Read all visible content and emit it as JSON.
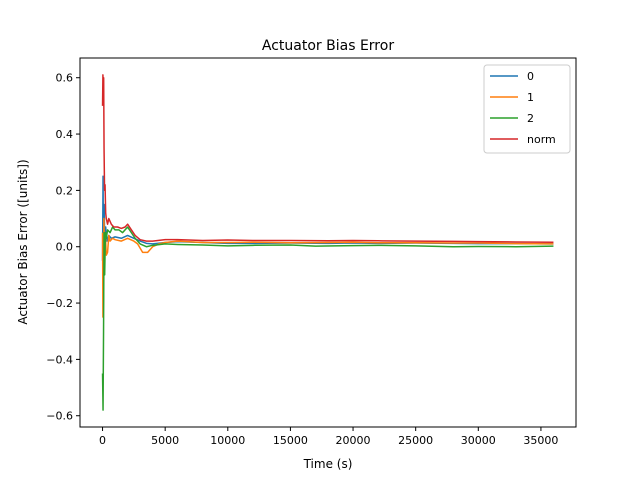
{
  "chart_data": {
    "type": "line",
    "title": "Actuator Bias Error",
    "xlabel": "Time (s)",
    "ylabel": "Actuator Bias Error ([units])",
    "xlim": [
      -1800,
      37800
    ],
    "ylim": [
      -0.64,
      0.67
    ],
    "xticks": [
      0,
      5000,
      10000,
      15000,
      20000,
      25000,
      30000,
      35000
    ],
    "xtick_labels": [
      "0",
      "5000",
      "10000",
      "15000",
      "20000",
      "25000",
      "30000",
      "35000"
    ],
    "yticks": [
      -0.6,
      -0.4,
      -0.2,
      0.0,
      0.2,
      0.4,
      0.6
    ],
    "ytick_labels": [
      "−0.6",
      "−0.4",
      "−0.2",
      "0.0",
      "0.2",
      "0.4",
      "0.6"
    ],
    "grid": false,
    "legend_position": "top-right",
    "series": [
      {
        "name": "0",
        "color": "#1f77b4",
        "points": [
          [
            0,
            -0.05
          ],
          [
            40,
            0.25
          ],
          [
            80,
            -0.1
          ],
          [
            130,
            0.15
          ],
          [
            180,
            -0.02
          ],
          [
            250,
            0.07
          ],
          [
            350,
            0.02
          ],
          [
            500,
            0.04
          ],
          [
            700,
            0.03
          ],
          [
            1000,
            0.035
          ],
          [
            1500,
            0.03
          ],
          [
            2000,
            0.04
          ],
          [
            2500,
            0.03
          ],
          [
            3000,
            0.02
          ],
          [
            3500,
            0.012
          ],
          [
            4000,
            0.01
          ],
          [
            5000,
            0.015
          ],
          [
            6000,
            0.018
          ],
          [
            8000,
            0.015
          ],
          [
            10000,
            0.012
          ],
          [
            12000,
            0.012
          ],
          [
            15000,
            0.013
          ],
          [
            18000,
            0.012
          ],
          [
            20000,
            0.013
          ],
          [
            22000,
            0.012
          ],
          [
            25000,
            0.013
          ],
          [
            28000,
            0.012
          ],
          [
            30000,
            0.011
          ],
          [
            33000,
            0.011
          ],
          [
            36000,
            0.01
          ]
        ]
      },
      {
        "name": "1",
        "color": "#ff7f0e",
        "points": [
          [
            0,
            0.05
          ],
          [
            30,
            -0.25
          ],
          [
            70,
            -0.2
          ],
          [
            110,
            0.1
          ],
          [
            160,
            -0.05
          ],
          [
            220,
            0.05
          ],
          [
            300,
            -0.03
          ],
          [
            400,
            -0.02
          ],
          [
            500,
            0.04
          ],
          [
            600,
            0.02
          ],
          [
            800,
            0.03
          ],
          [
            1000,
            0.025
          ],
          [
            1500,
            0.02
          ],
          [
            2000,
            0.03
          ],
          [
            2500,
            0.02
          ],
          [
            2800,
            0.01
          ],
          [
            3200,
            -0.02
          ],
          [
            3600,
            -0.02
          ],
          [
            4000,
            0.0
          ],
          [
            4500,
            0.01
          ],
          [
            5000,
            0.015
          ],
          [
            6000,
            0.02
          ],
          [
            8000,
            0.015
          ],
          [
            10000,
            0.015
          ],
          [
            12000,
            0.016
          ],
          [
            15000,
            0.014
          ],
          [
            18000,
            0.015
          ],
          [
            20000,
            0.016
          ],
          [
            22000,
            0.014
          ],
          [
            25000,
            0.014
          ],
          [
            28000,
            0.013
          ],
          [
            30000,
            0.013
          ],
          [
            33000,
            0.011
          ],
          [
            36000,
            0.01
          ]
        ]
      },
      {
        "name": "2",
        "color": "#2ca02c",
        "points": [
          [
            0,
            -0.45
          ],
          [
            40,
            -0.58
          ],
          [
            80,
            -0.3
          ],
          [
            120,
            0.05
          ],
          [
            170,
            -0.1
          ],
          [
            230,
            0.05
          ],
          [
            300,
            0.03
          ],
          [
            400,
            0.06
          ],
          [
            600,
            0.05
          ],
          [
            800,
            0.07
          ],
          [
            1000,
            0.06
          ],
          [
            1300,
            0.06
          ],
          [
            1600,
            0.05
          ],
          [
            2000,
            0.07
          ],
          [
            2300,
            0.05
          ],
          [
            2600,
            0.03
          ],
          [
            3000,
            0.01
          ],
          [
            3500,
            0.0
          ],
          [
            4000,
            0.005
          ],
          [
            5000,
            0.01
          ],
          [
            6000,
            0.008
          ],
          [
            8000,
            0.006
          ],
          [
            10000,
            0.003
          ],
          [
            12000,
            0.005
          ],
          [
            15000,
            0.006
          ],
          [
            17000,
            0.002
          ],
          [
            20000,
            0.004
          ],
          [
            22000,
            0.005
          ],
          [
            25000,
            0.003
          ],
          [
            28000,
            0.0
          ],
          [
            30000,
            0.001
          ],
          [
            33000,
            0.0
          ],
          [
            36000,
            0.002
          ]
        ]
      },
      {
        "name": "norm",
        "color": "#d62728",
        "points": [
          [
            0,
            0.5
          ],
          [
            30,
            0.61
          ],
          [
            60,
            0.55
          ],
          [
            90,
            0.6
          ],
          [
            120,
            0.35
          ],
          [
            160,
            0.2
          ],
          [
            200,
            0.22
          ],
          [
            250,
            0.12
          ],
          [
            300,
            0.1
          ],
          [
            400,
            0.08
          ],
          [
            500,
            0.1
          ],
          [
            700,
            0.08
          ],
          [
            900,
            0.07
          ],
          [
            1200,
            0.07
          ],
          [
            1500,
            0.065
          ],
          [
            1800,
            0.07
          ],
          [
            2000,
            0.08
          ],
          [
            2300,
            0.06
          ],
          [
            2600,
            0.04
          ],
          [
            3000,
            0.025
          ],
          [
            3500,
            0.02
          ],
          [
            4000,
            0.02
          ],
          [
            5000,
            0.025
          ],
          [
            6000,
            0.025
          ],
          [
            8000,
            0.022
          ],
          [
            10000,
            0.024
          ],
          [
            12000,
            0.022
          ],
          [
            15000,
            0.022
          ],
          [
            18000,
            0.021
          ],
          [
            20000,
            0.022
          ],
          [
            22000,
            0.021
          ],
          [
            25000,
            0.02
          ],
          [
            28000,
            0.019
          ],
          [
            30000,
            0.018
          ],
          [
            33000,
            0.017
          ],
          [
            36000,
            0.016
          ]
        ]
      }
    ]
  }
}
